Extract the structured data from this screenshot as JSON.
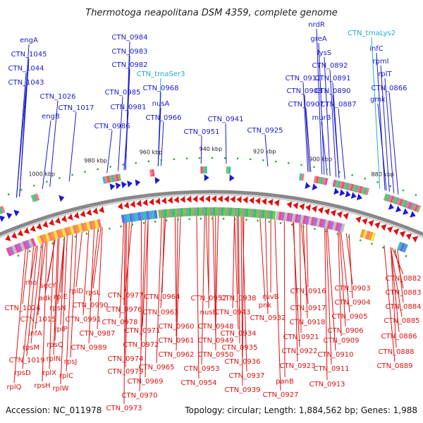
{
  "title": "Thermotoga neapolitana DSM 4359, complete genome",
  "footer": {
    "accession": "Accession: NC_011978",
    "summary": "Topology: circular; Length: 1,884,562 bp; Genes: 1,988"
  },
  "scale_labels": [
    "1000 kbp",
    "980 kbp",
    "960 kbp",
    "940 kbp",
    "920 kbp",
    "900 kbp",
    "880 kbp"
  ],
  "colors": {
    "forward": "#1a1acc",
    "reverse": "#dd1111",
    "trna": "#22aacc",
    "backbone": "#888888",
    "tick": "#22aa22"
  },
  "forward_labels": [
    "engA",
    "CTN_1045",
    "CTN_1044",
    "CTN_1043",
    "CTN_1026",
    "engB",
    "CTN_1017",
    "CTN_0984",
    "CTN_0983",
    "CTN_0982",
    "CTN_trnaSer3",
    "CTN_0985",
    "CTN_0968",
    "CTN_0981",
    "nusA",
    "CTN_0966",
    "CTN_0986",
    "CTN_0941",
    "CTN_0951",
    "CTN_0925",
    "nrdR",
    "greA",
    "CTN_trnaLys2",
    "lysS",
    "CTN_0892",
    "infC",
    "rpmI",
    "CTN_0912",
    "CTN_0891",
    "rplT",
    "CTN_0908",
    "CTN_0890",
    "CTN_0866",
    "CTN_0907",
    "CTN_0887",
    "gmk",
    "murB"
  ],
  "reverse_labels": [
    "rho",
    "secY",
    "adk",
    "rplE",
    "rplD",
    "rpsL",
    "CTN_1024",
    "rpsN",
    "CTN_0990",
    "CTN_1015",
    "CTN_0991",
    "infA",
    "rplP",
    "CTN_0987",
    "rpsM",
    "rpsQ",
    "CTN_0989",
    "CTN_1019",
    "rplN",
    "rpsJ",
    "rpsD",
    "rplX",
    "rplC",
    "rplQ",
    "rpsH",
    "rplW",
    "CTN_0977",
    "CTN_0976",
    "CTN_0978",
    "CTN_0971",
    "CTN_0972",
    "CTN_0974",
    "CTN_0965",
    "CTN_0979",
    "CTN_0969",
    "CTN_0970",
    "CTN_0973",
    "CTN_0964",
    "CTN_0963",
    "CTN_0960",
    "CTN_0961",
    "CTN_0962",
    "CTN_0952",
    "nusB",
    "CTN_0948",
    "CTN_0949",
    "CTN_0950",
    "CTN_0953",
    "CTN_0954",
    "CTN_0938",
    "CTN_0943",
    "CTN_0934",
    "CTN_0935",
    "CTN_0936",
    "CTN_0937",
    "CTN_0939",
    "ruvB",
    "pnk",
    "CTN_0932",
    "CTN_0916",
    "CTN_0917",
    "CTN_0918",
    "CTN_0921",
    "CTN_0922",
    "CTN_0923",
    "panB",
    "CTN_0927",
    "CTN_0903",
    "CTN_0904",
    "CTN_0905",
    "CTN_0906",
    "CTN_0909",
    "CTN_0910",
    "CTN_0911",
    "CTN_0913",
    "CTN_0882",
    "CTN_0883",
    "CTN_0884",
    "CTN_0885",
    "CTN_0886",
    "CTN_0888",
    "CTN_0889"
  ]
}
